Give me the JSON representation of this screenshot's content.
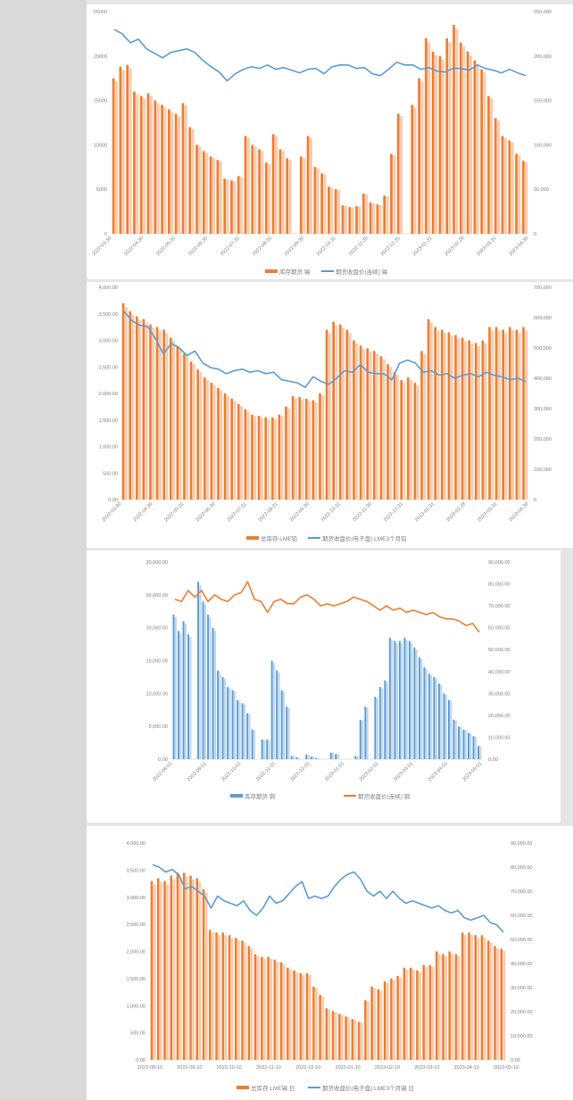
{
  "chart_data": [
    {
      "type": "bar+line",
      "title": "",
      "legend": [
        "库存期货:锡",
        "期货收盘价(连续):锡"
      ],
      "legend_position": "bottom",
      "bar_color": "#ed7d31",
      "line_color": "#5b9bd5",
      "x_ticks": [
        "2022-03-30",
        "2022-04-30",
        "2022-05-31",
        "2022-06-30",
        "2022-07-31",
        "2022-08-31",
        "2022-09-30",
        "2022-10-31",
        "2022-11-30",
        "2022-12-31",
        "2023-01-31",
        "2023-02-28",
        "2023-03-31",
        "2023-04-30"
      ],
      "y_left_ticks": [
        "0",
        "5000",
        "10000",
        "15000",
        "20000",
        "25000"
      ],
      "y_left_range": [
        0,
        25000
      ],
      "y_right_ticks": [
        "0",
        "50,000",
        "100,000",
        "150,000",
        "200,000",
        "250,000"
      ],
      "y_right_range": [
        0,
        250000
      ],
      "bars": [
        17500,
        18800,
        19000,
        16000,
        15500,
        15800,
        15000,
        14500,
        14000,
        13500,
        14700,
        12000,
        10000,
        9300,
        8700,
        8300,
        6200,
        6000,
        6500,
        11000,
        10000,
        9500,
        8000,
        11200,
        9500,
        8500,
        0,
        8700,
        11000,
        7500,
        6800,
        5300,
        5000,
        3200,
        3000,
        3100,
        4500,
        3500,
        3300,
        4300,
        9000,
        13500,
        0,
        14500,
        17500,
        22000,
        20500,
        20000,
        22000,
        23500,
        21500,
        20500,
        19500,
        18500,
        15500,
        13000,
        11000,
        10500,
        9000,
        8200
      ],
      "line": [
        230000,
        225000,
        215000,
        219000,
        208000,
        203000,
        198000,
        204000,
        206000,
        208000,
        204000,
        195000,
        188000,
        182000,
        172000,
        180000,
        185000,
        188000,
        186000,
        190000,
        185000,
        187000,
        184000,
        181000,
        185000,
        186000,
        180000,
        188000,
        190000,
        190000,
        186000,
        187000,
        180000,
        178000,
        185000,
        193000,
        190000,
        190000,
        185000,
        187000,
        183000,
        182000,
        186000,
        186000,
        184000,
        190000,
        186000,
        184000,
        181000,
        185000,
        181000,
        178000
      ]
    },
    {
      "type": "bar+line",
      "title": "",
      "legend": [
        "总库存:LME铅",
        "期货收盘价(电子盘):LME3个月铅"
      ],
      "legend_position": "bottom",
      "bar_color": "#ed7d31",
      "line_color": "#5b9bd5",
      "x_ticks": [
        "2022-03-30",
        "2022-04-30",
        "2022-05-31",
        "2022-06-30",
        "2022-07-31",
        "2022-08-31",
        "2022-09-30",
        "2022-10-31",
        "2022-11-30",
        "2022-12-31",
        "2023-01-31",
        "2023-02-28",
        "2023-03-31",
        "2023-04-30"
      ],
      "y_left_ticks": [
        "0.00",
        "500.00",
        "1,000.00",
        "1,500.00",
        "2,000.00",
        "2,500.00",
        "3,000.00",
        "3,500.00",
        "4,000.00"
      ],
      "y_left_range": [
        0,
        4000
      ],
      "y_right_ticks": [
        "0",
        "100,000",
        "200,000",
        "300,000",
        "400,000",
        "500,000",
        "600,000",
        "700,000"
      ],
      "y_right_range": [
        0,
        700000
      ],
      "bars": [
        3700,
        3550,
        3450,
        3400,
        3300,
        3250,
        3200,
        3050,
        2900,
        2750,
        2600,
        2450,
        2300,
        2200,
        2100,
        2000,
        1900,
        1800,
        1700,
        1600,
        1580,
        1550,
        1550,
        1600,
        1750,
        1950,
        1930,
        1900,
        1870,
        2000,
        3200,
        3350,
        3300,
        3200,
        3000,
        2900,
        2850,
        2800,
        2700,
        2550,
        2400,
        2250,
        2300,
        2200,
        2800,
        3400,
        3250,
        3200,
        3150,
        3100,
        3050,
        3000,
        2950,
        3000,
        3250,
        3250,
        3200,
        3250,
        3200,
        3250
      ],
      "line": [
        620000,
        590000,
        575000,
        570000,
        530000,
        480000,
        515000,
        500000,
        475000,
        490000,
        450000,
        435000,
        430000,
        415000,
        425000,
        430000,
        420000,
        425000,
        415000,
        420000,
        395000,
        390000,
        385000,
        370000,
        405000,
        390000,
        380000,
        400000,
        425000,
        420000,
        445000,
        420000,
        415000,
        415000,
        395000,
        450000,
        460000,
        450000,
        420000,
        425000,
        410000,
        415000,
        400000,
        410000,
        415000,
        405000,
        420000,
        410000,
        405000,
        395000,
        400000,
        390000
      ]
    },
    {
      "type": "bar+line",
      "title": "",
      "legend": [
        "库存期货:铜",
        "期货收盘价(连续):铜"
      ],
      "legend_position": "bottom",
      "bar_color": "#5b9bd5",
      "line_color": "#ed7d31",
      "x_ticks": [
        "2022-08-01",
        "2022-09-01",
        "2022-10-01",
        "2022-11-01",
        "2022-12-01",
        "2023-01-01",
        "2023-02-01",
        "2023-03-01",
        "2023-04-01",
        "2023-05-01"
      ],
      "y_left_ticks": [
        "0.00",
        "5,000.00",
        "10,000.00",
        "15,000.00",
        "20,000.00",
        "25,000.00",
        "30,000.00"
      ],
      "y_left_range": [
        0,
        30000
      ],
      "y_right_ticks": [
        "0.00",
        "10,000.00",
        "20,000.00",
        "30,000.00",
        "40,000.00",
        "50,000.00",
        "60,000.00",
        "70,000.00",
        "80,000.00",
        "90,000.00"
      ],
      "y_right_range": [
        0,
        90000
      ],
      "bars": [
        22000,
        19500,
        21000,
        19000,
        0,
        27000,
        24000,
        22000,
        20000,
        13500,
        12500,
        11000,
        10500,
        9000,
        8500,
        7000,
        4500,
        0,
        3000,
        3000,
        15000,
        13500,
        10500,
        8000,
        500,
        300,
        0,
        700,
        400,
        200,
        0,
        0,
        1000,
        800,
        0,
        0,
        0,
        500,
        6000,
        8000,
        0,
        9500,
        11000,
        12000,
        18500,
        18000,
        18000,
        18500,
        18000,
        17000,
        15500,
        14000,
        13000,
        12500,
        11500,
        10000,
        9000,
        6000,
        5000,
        4500,
        4000,
        3500,
        2000
      ],
      "line": [
        73000,
        72000,
        77000,
        74000,
        77000,
        72000,
        75000,
        73000,
        72000,
        75000,
        76000,
        81000,
        73000,
        72000,
        67000,
        72000,
        73000,
        71000,
        71000,
        74000,
        75000,
        73000,
        70000,
        71000,
        70000,
        71000,
        72000,
        74000,
        73000,
        72000,
        70000,
        68000,
        70000,
        68000,
        69000,
        67000,
        68000,
        67000,
        66000,
        67000,
        65000,
        64000,
        64000,
        63000,
        61000,
        62000,
        58000
      ]
    },
    {
      "type": "bar+line",
      "title": "",
      "legend": [
        "总库存:LME锡 日",
        "期货收盘价(电子盘):LME3个月锡 日"
      ],
      "legend_position": "bottom",
      "bar_color": "#ed7d31",
      "line_color": "#5b9bd5",
      "x_ticks": [
        "2022-08-10",
        "2022-09-10",
        "2022-10-10",
        "2022-11-10",
        "2022-12-10",
        "2023-01-10",
        "2023-02-10",
        "2023-03-10",
        "2023-04-10",
        "2023-05-10"
      ],
      "y_left_ticks": [
        "0.00",
        "500.00",
        "1,000.00",
        "1,500.00",
        "2,000.00",
        "2,500.00",
        "3,000.00",
        "3,500.00",
        "4,000.00"
      ],
      "y_left_range": [
        0,
        4000
      ],
      "y_right_ticks": [
        "0.00",
        "10,000.00",
        "20,000.00",
        "30,000.00",
        "40,000.00",
        "50,000.00",
        "60,000.00",
        "70,000.00",
        "80,000.00",
        "90,000.00"
      ],
      "y_right_range": [
        0,
        90000
      ],
      "bars": [
        3300,
        3350,
        3300,
        3400,
        3450,
        3450,
        3400,
        3350,
        3150,
        2400,
        2350,
        2350,
        2300,
        2250,
        2200,
        2100,
        1950,
        1900,
        1900,
        1850,
        1800,
        1700,
        1650,
        1600,
        1600,
        1350,
        1200,
        950,
        900,
        850,
        800,
        750,
        700,
        1100,
        1350,
        1300,
        1450,
        1500,
        1550,
        1700,
        1700,
        1650,
        1750,
        1750,
        2000,
        1950,
        2000,
        1950,
        2350,
        2350,
        2300,
        2300,
        2200,
        2100,
        2050
      ],
      "line": [
        81000,
        80000,
        78000,
        79000,
        77000,
        71000,
        72000,
        70000,
        68000,
        63000,
        68000,
        66000,
        65000,
        64000,
        66000,
        62000,
        60000,
        63000,
        68000,
        65000,
        66000,
        69000,
        72000,
        74000,
        67000,
        68000,
        67000,
        68000,
        72000,
        75000,
        77000,
        78000,
        75000,
        70000,
        68000,
        70000,
        67000,
        70000,
        67000,
        65000,
        66000,
        65000,
        64000,
        63000,
        64000,
        62000,
        61000,
        62000,
        59000,
        58000,
        59000,
        60000,
        57000,
        56000,
        53000
      ]
    }
  ]
}
